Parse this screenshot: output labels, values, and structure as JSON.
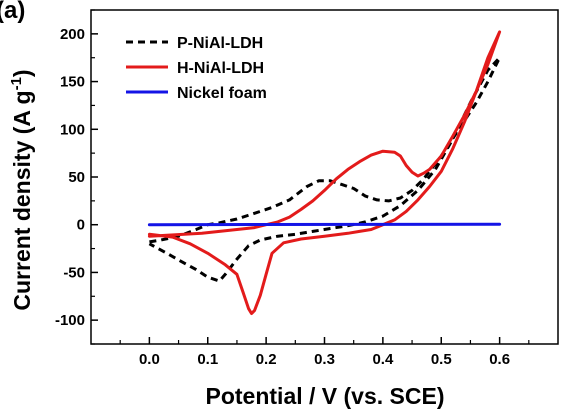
{
  "panel_label": "(a)",
  "chart_data": {
    "type": "line",
    "title": "",
    "xlabel": "Potential / V (vs. SCE)",
    "ylabel_main": "Current density (A g",
    "ylabel_sup": "-1",
    "ylabel_end": ")",
    "xlim": [
      -0.1,
      0.7
    ],
    "ylim": [
      -125,
      225
    ],
    "x_ticks": [
      "0.0",
      "0.1",
      "0.2",
      "0.3",
      "0.4",
      "0.5",
      "0.6"
    ],
    "y_ticks": [
      "-100",
      "-50",
      "0",
      "50",
      "100",
      "150",
      "200"
    ],
    "grid": false,
    "legend_position": "top-left",
    "series": [
      {
        "name": "P-NiAl-LDH",
        "color": "#000000",
        "style": "dashed",
        "points": [
          [
            0.0,
            -18
          ],
          [
            0.02,
            -16
          ],
          [
            0.05,
            -12
          ],
          [
            0.08,
            -5
          ],
          [
            0.1,
            0
          ],
          [
            0.12,
            2
          ],
          [
            0.15,
            6
          ],
          [
            0.18,
            12
          ],
          [
            0.21,
            18
          ],
          [
            0.24,
            26
          ],
          [
            0.27,
            40
          ],
          [
            0.29,
            46
          ],
          [
            0.31,
            46
          ],
          [
            0.33,
            42
          ],
          [
            0.35,
            38
          ],
          [
            0.37,
            30
          ],
          [
            0.39,
            26
          ],
          [
            0.41,
            25
          ],
          [
            0.43,
            28
          ],
          [
            0.45,
            36
          ],
          [
            0.47,
            48
          ],
          [
            0.5,
            72
          ],
          [
            0.53,
            100
          ],
          [
            0.56,
            128
          ],
          [
            0.58,
            150
          ],
          [
            0.6,
            175
          ],
          [
            0.58,
            162
          ],
          [
            0.55,
            128
          ],
          [
            0.52,
            90
          ],
          [
            0.49,
            58
          ],
          [
            0.46,
            36
          ],
          [
            0.43,
            20
          ],
          [
            0.4,
            9
          ],
          [
            0.37,
            3
          ],
          [
            0.34,
            -1
          ],
          [
            0.31,
            -4
          ],
          [
            0.28,
            -7
          ],
          [
            0.25,
            -10
          ],
          [
            0.22,
            -12
          ],
          [
            0.19,
            -16
          ],
          [
            0.17,
            -22
          ],
          [
            0.15,
            -36
          ],
          [
            0.13,
            -52
          ],
          [
            0.12,
            -59
          ],
          [
            0.1,
            -55
          ],
          [
            0.08,
            -47
          ],
          [
            0.05,
            -37
          ],
          [
            0.03,
            -30
          ],
          [
            0.0,
            -20
          ]
        ]
      },
      {
        "name": "H-NiAl-LDH",
        "color": "#e31b1b",
        "style": "solid",
        "points": [
          [
            0.0,
            -12
          ],
          [
            0.03,
            -11
          ],
          [
            0.06,
            -10
          ],
          [
            0.09,
            -9
          ],
          [
            0.12,
            -7
          ],
          [
            0.15,
            -5
          ],
          [
            0.18,
            -3
          ],
          [
            0.2,
            0
          ],
          [
            0.22,
            3
          ],
          [
            0.24,
            8
          ],
          [
            0.26,
            16
          ],
          [
            0.28,
            25
          ],
          [
            0.3,
            36
          ],
          [
            0.32,
            48
          ],
          [
            0.34,
            58
          ],
          [
            0.36,
            66
          ],
          [
            0.38,
            73
          ],
          [
            0.4,
            77
          ],
          [
            0.42,
            76
          ],
          [
            0.43,
            72
          ],
          [
            0.44,
            62
          ],
          [
            0.45,
            55
          ],
          [
            0.46,
            51
          ],
          [
            0.47,
            54
          ],
          [
            0.48,
            58
          ],
          [
            0.5,
            72
          ],
          [
            0.52,
            93
          ],
          [
            0.54,
            115
          ],
          [
            0.56,
            140
          ],
          [
            0.58,
            168
          ],
          [
            0.6,
            202
          ],
          [
            0.58,
            175
          ],
          [
            0.56,
            140
          ],
          [
            0.54,
            108
          ],
          [
            0.52,
            80
          ],
          [
            0.5,
            56
          ],
          [
            0.48,
            40
          ],
          [
            0.46,
            26
          ],
          [
            0.44,
            14
          ],
          [
            0.42,
            5
          ],
          [
            0.4,
            0
          ],
          [
            0.38,
            -5
          ],
          [
            0.36,
            -7
          ],
          [
            0.34,
            -9
          ],
          [
            0.3,
            -12
          ],
          [
            0.26,
            -15
          ],
          [
            0.23,
            -19
          ],
          [
            0.21,
            -30
          ],
          [
            0.2,
            -52
          ],
          [
            0.19,
            -74
          ],
          [
            0.18,
            -90
          ],
          [
            0.175,
            -93
          ],
          [
            0.17,
            -88
          ],
          [
            0.16,
            -70
          ],
          [
            0.15,
            -52
          ],
          [
            0.13,
            -42
          ],
          [
            0.1,
            -30
          ],
          [
            0.07,
            -20
          ],
          [
            0.04,
            -13
          ],
          [
            0.0,
            -10
          ]
        ]
      },
      {
        "name": "Nickel foam",
        "color": "#1414e6",
        "style": "solid",
        "points": [
          [
            0.0,
            0
          ],
          [
            0.6,
            0.5
          ]
        ]
      }
    ]
  }
}
